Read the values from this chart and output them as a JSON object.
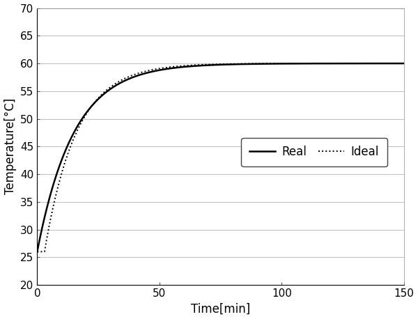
{
  "title": "",
  "xlabel": "Time[min]",
  "ylabel": "Temperature[°C]",
  "xlim": [
    0,
    150
  ],
  "ylim": [
    20,
    70
  ],
  "xticks": [
    0,
    50,
    100,
    150
  ],
  "yticks": [
    20,
    25,
    30,
    35,
    40,
    45,
    50,
    55,
    60,
    65,
    70
  ],
  "T_start": 26.0,
  "T_end": 60.0,
  "real_tau": 15.0,
  "ideal_tau": 13.0,
  "ideal_delay": 3.0,
  "line_color": "#000000",
  "real_linewidth": 1.8,
  "ideal_linewidth": 1.4,
  "legend_real": "Real",
  "legend_ideal": "Ideal",
  "grid_color": "#c0c0c0",
  "grid_linewidth": 0.7,
  "background_color": "#ffffff",
  "figsize": [
    6.0,
    4.58
  ],
  "dpi": 100,
  "tick_fontsize": 11,
  "label_fontsize": 12
}
